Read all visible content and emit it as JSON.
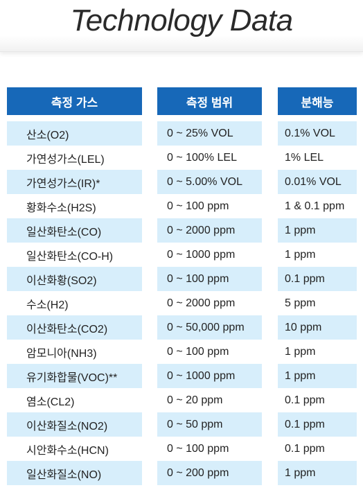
{
  "title": "Technology Data",
  "headers": {
    "gas": "측정 가스",
    "range": "측정 범위",
    "resolution": "분해능"
  },
  "colors": {
    "header_bg": "#1768b8",
    "row_shade": "#d7eefb"
  },
  "rows": [
    {
      "gas": "산소(O2)",
      "range": "0 ~ 25% VOL",
      "resolution": "0.1% VOL"
    },
    {
      "gas": "가연성가스(LEL)",
      "range": "0 ~ 100% LEL",
      "resolution": "1% LEL"
    },
    {
      "gas": "가연성가스(IR)*",
      "range": "0 ~ 5.00% VOL",
      "resolution": "0.01% VOL"
    },
    {
      "gas": "황화수소(H2S)",
      "range": "0 ~ 100 ppm",
      "resolution": "1 & 0.1 ppm"
    },
    {
      "gas": "일산화탄소(CO)",
      "range": "0 ~ 2000 ppm",
      "resolution": "1 ppm"
    },
    {
      "gas": "일산화탄소(CO-H)",
      "range": "0 ~ 1000 ppm",
      "resolution": "1 ppm"
    },
    {
      "gas": "이산화황(SO2)",
      "range": "0 ~ 100 ppm",
      "resolution": "0.1 ppm"
    },
    {
      "gas": "수소(H2)",
      "range": "0 ~ 2000 ppm",
      "resolution": "5 ppm"
    },
    {
      "gas": "이산화탄소(CO2)",
      "range": "0 ~ 50,000 ppm",
      "resolution": "10 ppm"
    },
    {
      "gas": "암모니아(NH3)",
      "range": "0 ~ 100 ppm",
      "resolution": "1 ppm"
    },
    {
      "gas": "유기화합물(VOC)**",
      "range": "0 ~ 1000 ppm",
      "resolution": "1 ppm"
    },
    {
      "gas": "염소(CL2)",
      "range": "0 ~ 20 ppm",
      "resolution": "0.1 ppm"
    },
    {
      "gas": "이산화질소(NO2)",
      "range": "0 ~ 50 ppm",
      "resolution": "0.1 ppm"
    },
    {
      "gas": "시안화수소(HCN)",
      "range": "0 ~ 100 ppm",
      "resolution": "0.1 ppm"
    },
    {
      "gas": "일산화질소(NO)",
      "range": "0 ~ 200 ppm",
      "resolution": "1 ppm"
    }
  ]
}
